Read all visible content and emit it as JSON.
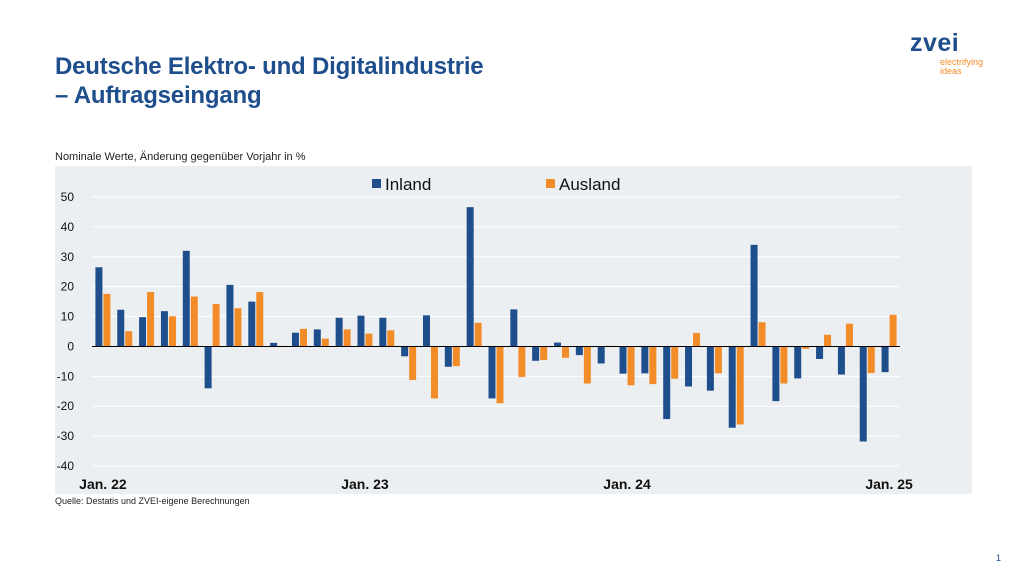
{
  "slide": {
    "title": "Deutsche Elektro- und Digitalindustrie",
    "subtitle": "– Auftragseingang",
    "note": "Nominale Werte, Änderung gegenüber Vorjahr in %",
    "source": "Quelle: Destatis und ZVEI-eigene Berechnungen",
    "page_number": "1"
  },
  "logo": {
    "word": "zvei",
    "tagline_1": "electrifying",
    "tagline_2": "ideas"
  },
  "colors": {
    "inland": "#1f4e8c",
    "ausland": "#f28c28",
    "background": "#eceff2",
    "title": "#1f4e8c"
  },
  "chart_data": {
    "type": "bar",
    "ylim": [
      -40,
      50
    ],
    "yticks": [
      50,
      40,
      30,
      20,
      10,
      0,
      -10,
      -20,
      -30,
      -40
    ],
    "grid": true,
    "legend_position": "top-center",
    "x_tick_labels": [
      {
        "label": "Jan. 22",
        "index": 0
      },
      {
        "label": "Jan. 23",
        "index": 12
      },
      {
        "label": "Jan. 24",
        "index": 24
      },
      {
        "label": "Jan. 25",
        "index": 36
      }
    ],
    "series": [
      {
        "name": "Inland",
        "values": [
          26.5,
          12.3,
          9.8,
          11.8,
          32.0,
          -14.0,
          20.6,
          15.0,
          1.2,
          4.6,
          5.7,
          9.6,
          10.3,
          9.6,
          -3.3,
          10.4,
          -6.8,
          46.6,
          -17.4,
          12.4,
          -4.8,
          1.3,
          -2.9,
          -5.7,
          -9.1,
          -9.0,
          -24.3,
          -13.4,
          -14.8,
          -27.2,
          34.0,
          -18.3,
          -10.7,
          -4.2,
          -9.4,
          -31.8,
          -8.6
        ]
      },
      {
        "name": "Ausland",
        "values": [
          17.6,
          5.1,
          18.2,
          10.1,
          16.7,
          14.2,
          12.8,
          18.2,
          0.2,
          5.9,
          2.6,
          5.7,
          4.3,
          5.4,
          -11.2,
          -17.4,
          -6.6,
          7.9,
          -19.0,
          -10.2,
          -4.5,
          -3.8,
          -12.4,
          0.2,
          -13.0,
          -12.6,
          -10.8,
          4.5,
          -9.0,
          -26.1,
          8.1,
          -12.4,
          -0.8,
          3.9,
          7.6,
          -8.9,
          10.6
        ]
      }
    ]
  }
}
